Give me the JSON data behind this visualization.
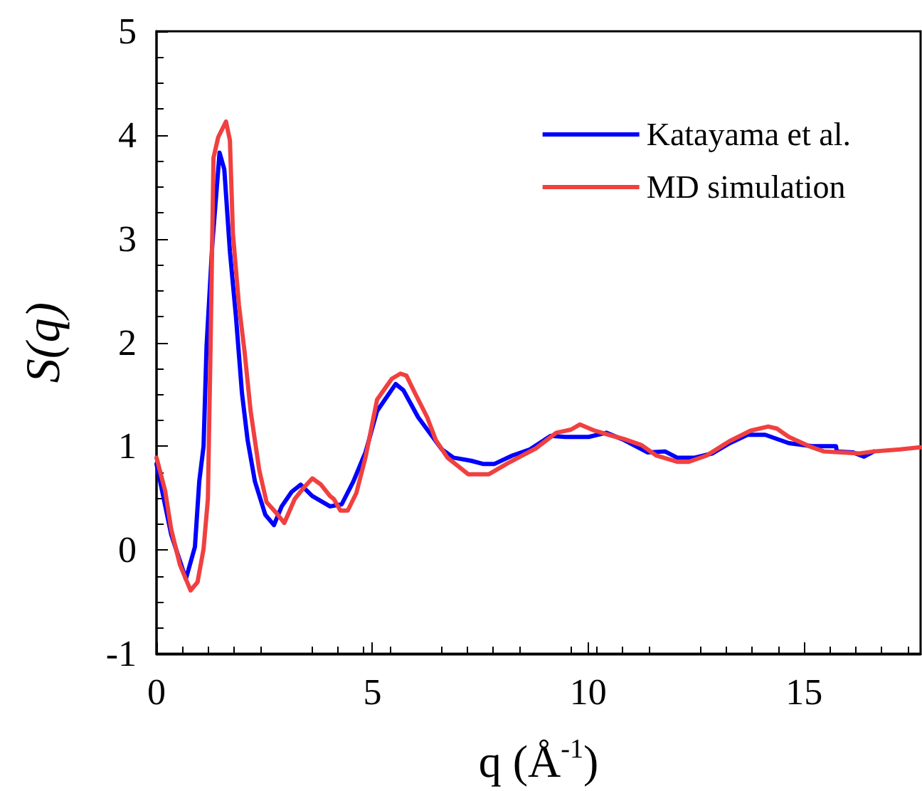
{
  "chart_data": {
    "type": "line",
    "xlabel": "q (Å$^{-1}$)",
    "ylabel": "S(q)",
    "xlim": [
      0,
      17.7
    ],
    "xticks": [
      0,
      5,
      10,
      15
    ],
    "ylim": [
      -1,
      5
    ],
    "yticks": [
      -1,
      0,
      1,
      2,
      3,
      4,
      5
    ],
    "legend": "top right",
    "grid": false,
    "marker": "none",
    "line_style": "solid",
    "series": [
      {
        "name": "Katayama et al.",
        "color": "#0000ff",
        "x": [
          0,
          0.34,
          0.68,
          0.89,
          0.99,
          1.09,
          1.16,
          1.29,
          1.46,
          1.57,
          1.7,
          1.84,
          1.98,
          2.11,
          2.28,
          2.52,
          2.72,
          2.9,
          3.13,
          3.34,
          3.61,
          4.02,
          4.29,
          4.56,
          4.84,
          5.11,
          5.54,
          5.72,
          6.06,
          6.61,
          6.88,
          7.29,
          7.56,
          7.83,
          8.24,
          8.65,
          9.13,
          9.47,
          10.01,
          10.42,
          10.83,
          11.38,
          11.78,
          12.06,
          12.47,
          12.87,
          13.28,
          13.69,
          14.1,
          14.65,
          15.19,
          15.74,
          15.76,
          16.14,
          16.39,
          16.62
        ],
        "values": [
          0.83,
          0.15,
          -0.28,
          0.03,
          0.66,
          1.0,
          1.97,
          2.93,
          3.83,
          3.67,
          2.88,
          2.25,
          1.51,
          1.06,
          0.66,
          0.34,
          0.24,
          0.42,
          0.56,
          0.63,
          0.52,
          0.42,
          0.44,
          0.66,
          0.94,
          1.34,
          1.6,
          1.54,
          1.28,
          0.97,
          0.89,
          0.86,
          0.83,
          0.83,
          0.91,
          0.97,
          1.1,
          1.09,
          1.09,
          1.13,
          1.06,
          0.94,
          0.95,
          0.89,
          0.89,
          0.93,
          1.03,
          1.11,
          1.11,
          1.03,
          1.0,
          1.0,
          0.95,
          0.94,
          0.9,
          0.95
        ]
      },
      {
        "name": "MD simulation",
        "color": "#f04040",
        "x": [
          0,
          0.2,
          0.34,
          0.54,
          0.79,
          0.95,
          1.09,
          1.19,
          1.25,
          1.32,
          1.43,
          1.61,
          1.7,
          1.77,
          1.91,
          2.04,
          2.18,
          2.38,
          2.55,
          2.79,
          2.96,
          3.2,
          3.41,
          3.61,
          3.81,
          4.02,
          4.11,
          4.26,
          4.43,
          4.63,
          4.84,
          5.11,
          5.45,
          5.65,
          5.79,
          5.99,
          6.27,
          6.47,
          6.74,
          7.22,
          7.7,
          8.11,
          8.38,
          8.79,
          9.26,
          9.6,
          9.81,
          10.15,
          10.56,
          10.83,
          11.24,
          11.58,
          12.06,
          12.33,
          12.74,
          13.28,
          13.76,
          14.17,
          14.37,
          14.65,
          15.12,
          15.46,
          15.87,
          16.28,
          16.62,
          17.23,
          17.7
        ],
        "values": [
          0.89,
          0.57,
          0.2,
          -0.14,
          -0.39,
          -0.31,
          0.01,
          0.49,
          1.91,
          3.78,
          3.98,
          4.13,
          3.95,
          3.05,
          2.36,
          1.91,
          1.34,
          0.77,
          0.46,
          0.35,
          0.26,
          0.49,
          0.6,
          0.69,
          0.63,
          0.52,
          0.49,
          0.38,
          0.38,
          0.55,
          0.89,
          1.45,
          1.65,
          1.7,
          1.68,
          1.51,
          1.28,
          1.06,
          0.89,
          0.73,
          0.73,
          0.83,
          0.89,
          0.98,
          1.13,
          1.16,
          1.21,
          1.15,
          1.1,
          1.07,
          1.01,
          0.91,
          0.85,
          0.85,
          0.91,
          1.05,
          1.15,
          1.19,
          1.17,
          1.09,
          1.0,
          0.95,
          0.94,
          0.93,
          0.95,
          0.97,
          0.99
        ]
      }
    ]
  }
}
